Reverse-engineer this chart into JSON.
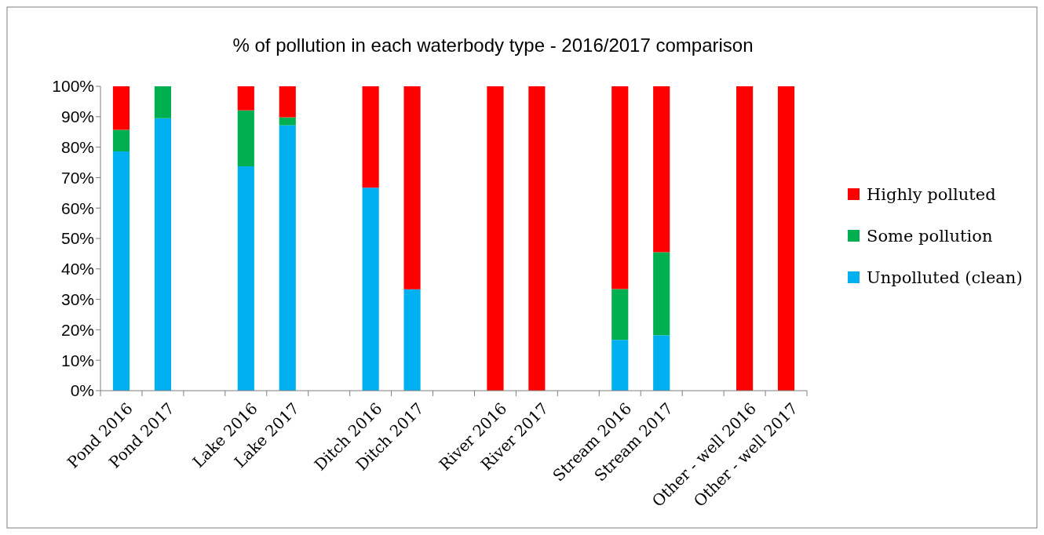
{
  "chart_data": {
    "type": "bar",
    "stacked": true,
    "title": "% of pollution in each waterbody type - 2016/2017 comparison",
    "categories": [
      "Pond 2016",
      "Pond 2017",
      null,
      "Lake 2016",
      "Lake 2017",
      null,
      "Ditch 2016",
      "Ditch 2017",
      null,
      "River 2016",
      "River 2017",
      null,
      "Stream 2016",
      "Stream 2017",
      null,
      "Other - well 2016",
      "Other - well 2017"
    ],
    "series": [
      {
        "name": "Unpolluted (clean)",
        "color": "#00b0f0",
        "values": [
          78.6,
          89.5,
          null,
          73.7,
          87.2,
          null,
          66.7,
          33.3,
          null,
          0,
          0,
          null,
          16.7,
          18.2,
          null,
          0,
          0
        ]
      },
      {
        "name": "Some pollution",
        "color": "#00b050",
        "values": [
          7.1,
          10.5,
          null,
          18.4,
          2.6,
          null,
          0,
          0,
          null,
          0,
          0,
          null,
          16.7,
          27.3,
          null,
          0,
          0
        ]
      },
      {
        "name": "Highly polluted",
        "color": "#ff0000",
        "values": [
          14.3,
          0,
          null,
          7.9,
          10.2,
          null,
          33.3,
          66.7,
          null,
          100,
          100,
          null,
          66.6,
          54.5,
          null,
          100,
          100
        ]
      }
    ],
    "ylim": [
      0,
      100
    ],
    "yticks": [
      {
        "value": 0,
        "label": "0%"
      },
      {
        "value": 10,
        "label": "10%"
      },
      {
        "value": 20,
        "label": "20%"
      },
      {
        "value": 30,
        "label": "30%"
      },
      {
        "value": 40,
        "label": "40%"
      },
      {
        "value": 50,
        "label": "50%"
      },
      {
        "value": 60,
        "label": "60%"
      },
      {
        "value": 70,
        "label": "70%"
      },
      {
        "value": 80,
        "label": "80%"
      },
      {
        "value": 90,
        "label": "90%"
      },
      {
        "value": 100,
        "label": "100%"
      }
    ],
    "grid": false,
    "legend": "right"
  }
}
